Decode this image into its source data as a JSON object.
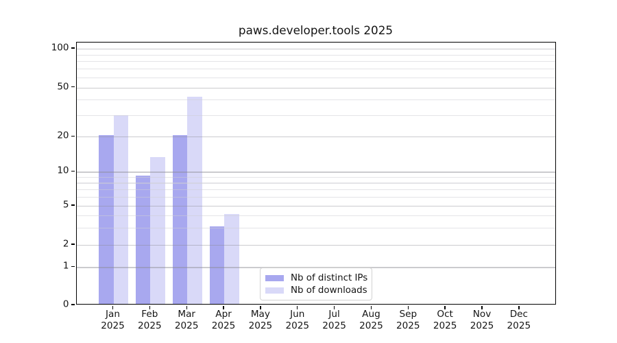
{
  "title": "paws.developer.tools 2025",
  "chart_data": {
    "type": "bar",
    "categories": [
      "Jan",
      "Feb",
      "Mar",
      "Apr",
      "May",
      "Jun",
      "Jul",
      "Aug",
      "Sep",
      "Oct",
      "Nov",
      "Dec"
    ],
    "year": "2025",
    "series": [
      {
        "name": "Nb of distinct IPs",
        "color": "#a8a8ef",
        "values": [
          20,
          9,
          20,
          3,
          0,
          0,
          0,
          0,
          0,
          0,
          0,
          0
        ]
      },
      {
        "name": "Nb of downloads",
        "color": "#d9d9f8",
        "values": [
          29,
          13,
          41,
          4,
          0,
          0,
          0,
          0,
          0,
          0,
          0,
          0
        ]
      }
    ],
    "title": "paws.developer.tools 2025",
    "xlabel": "",
    "ylabel": "",
    "yticks": [
      0,
      1,
      2,
      5,
      10,
      20,
      50,
      100
    ],
    "minor_gridlines": [
      3,
      4,
      6,
      7,
      8,
      9,
      30,
      40,
      60,
      70,
      80,
      90
    ],
    "ylim": [
      0,
      120
    ],
    "yscale": "log-like with 0 baseline",
    "grid": true,
    "legend_position": "inside lower-center"
  },
  "legend": {
    "items": [
      {
        "label": "Nb of distinct IPs",
        "color": "#a8a8ef"
      },
      {
        "label": "Nb of downloads",
        "color": "#d9d9f8"
      }
    ]
  }
}
